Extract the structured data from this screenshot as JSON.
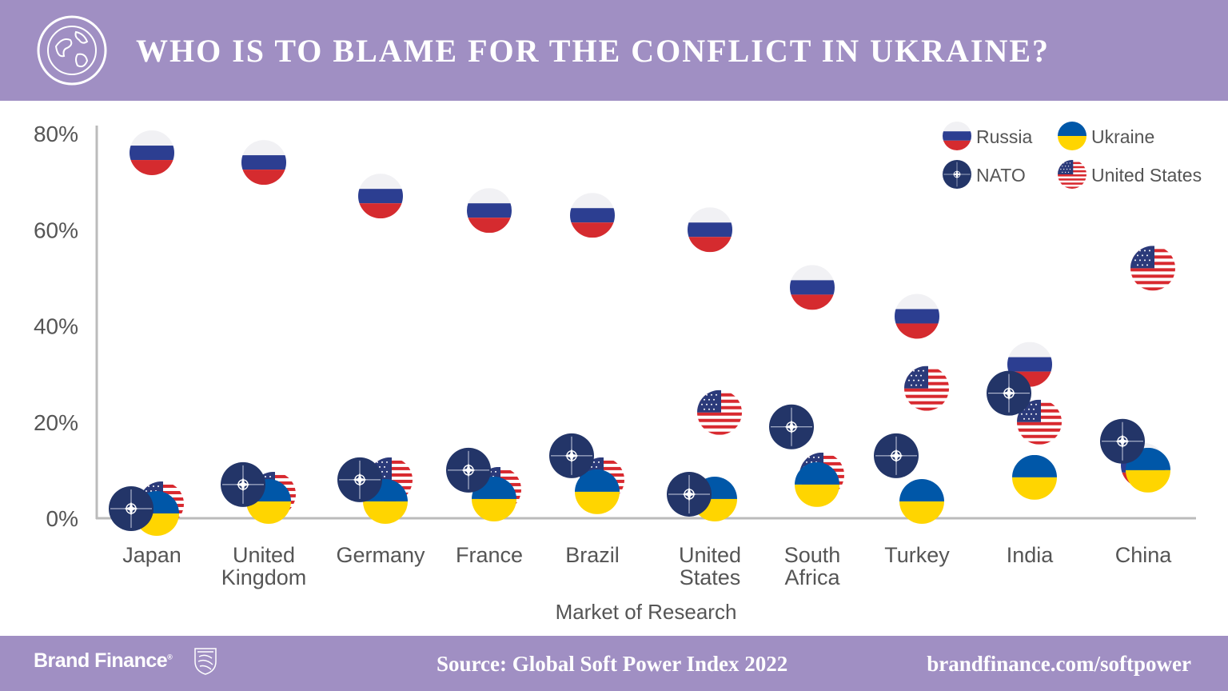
{
  "header": {
    "title": "WHO IS TO BLAME FOR THE CONFLICT IN UKRAINE?",
    "icon": "globe-icon"
  },
  "footer": {
    "brand": "Brand Finance",
    "brand_mark": "®",
    "source": "Source: Global Soft Power Index 2022",
    "url": "brandfinance.com/softpower"
  },
  "colors": {
    "header": "#a08fc3",
    "russia_blue": "#2c3e91",
    "russia_red": "#d52b2f",
    "ukraine_blue": "#0057a8",
    "ukraine_yellow": "#ffd500",
    "nato": "#233568",
    "us_red": "#d8292f",
    "us_blue": "#2b3a7a"
  },
  "chart_data": {
    "type": "scatter",
    "title": "WHO IS TO BLAME FOR THE CONFLICT IN UKRAINE?",
    "xlabel": "Market of Research",
    "ylabel": "",
    "ylim": [
      0,
      80
    ],
    "yticks": [
      "0%",
      "20%",
      "40%",
      "60%",
      "80%"
    ],
    "ytick_values": [
      0,
      20,
      40,
      60,
      80
    ],
    "categories": [
      [
        "Japan"
      ],
      [
        "United",
        "Kingdom"
      ],
      [
        "Germany"
      ],
      [
        "France"
      ],
      [
        "Brazil"
      ],
      [
        "United",
        "States"
      ],
      [
        "South",
        "Africa"
      ],
      [
        "Turkey"
      ],
      [
        "India"
      ],
      [
        "China"
      ]
    ],
    "legend_position": "top-right",
    "series": [
      {
        "name": "Russia",
        "flag": "russia",
        "values": [
          76,
          74,
          67,
          64,
          63,
          60,
          48,
          42,
          32,
          11
        ]
      },
      {
        "name": "United States",
        "flag": "us",
        "values": [
          3,
          5,
          8,
          6,
          8,
          22,
          9,
          27,
          20,
          52
        ]
      },
      {
        "name": "Ukraine",
        "flag": "ukraine",
        "values": [
          1,
          3.5,
          3.5,
          4,
          5.5,
          4,
          7,
          3.5,
          8.5,
          10
        ]
      },
      {
        "name": "NATO",
        "flag": "nato",
        "values": [
          2,
          7,
          8,
          10,
          13,
          5,
          19,
          13,
          26,
          16
        ]
      }
    ],
    "legend": [
      {
        "name": "Russia",
        "flag": "russia"
      },
      {
        "name": "Ukraine",
        "flag": "ukraine"
      },
      {
        "name": "NATO",
        "flag": "nato"
      },
      {
        "name": "United States",
        "flag": "us"
      }
    ]
  }
}
